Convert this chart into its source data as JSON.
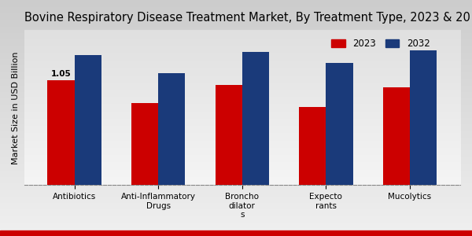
{
  "title": "Bovine Respiratory Disease Treatment Market, By Treatment Type, 2023 & 20",
  "ylabel": "Market Size in USD Billion",
  "categories": [
    "Antibiotics",
    "Anti-Inflammatory\nDrugs",
    "Broncho\ndilator\ns",
    "Expecto\nrants",
    "Mucolytics"
  ],
  "values_2023": [
    1.05,
    0.82,
    1.0,
    0.78,
    0.98
  ],
  "values_2032": [
    1.3,
    1.12,
    1.33,
    1.22,
    1.35
  ],
  "color_2023": "#cc0000",
  "color_2032": "#1a3a7a",
  "bar_width": 0.32,
  "annotation_label": "1.05",
  "annotation_bar": 0,
  "background_top": "#d4d4d4",
  "background_bottom": "#f5f5f5",
  "ylim": [
    0,
    1.55
  ],
  "legend_2023": "2023",
  "legend_2032": "2032",
  "title_fontsize": 10.5,
  "ylabel_fontsize": 8,
  "tick_fontsize": 7.5,
  "legend_fontsize": 8.5,
  "bottom_bar_color": "#cc0000",
  "bottom_bar_height": 0.022
}
